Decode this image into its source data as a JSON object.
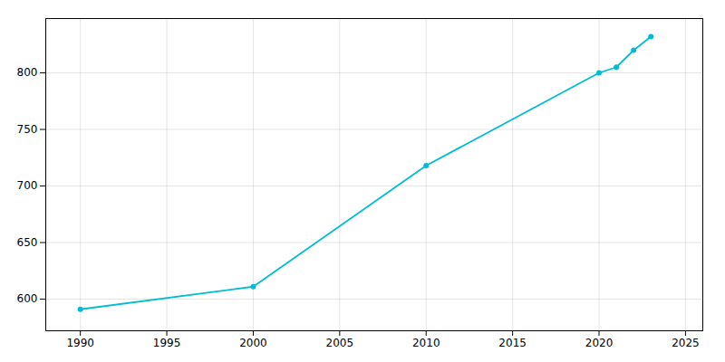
{
  "chart_data": {
    "type": "line",
    "x": [
      1990,
      2000,
      2010,
      2020,
      2021,
      2022,
      2023
    ],
    "values": [
      591,
      611,
      718,
      800,
      805,
      820,
      832
    ],
    "color": "#00bcd4",
    "marker": "circle",
    "xlim": [
      1988,
      2026
    ],
    "xticks": [
      1990,
      1995,
      2000,
      2005,
      2010,
      2015,
      2020,
      2025
    ],
    "ylim": [
      572,
      848
    ],
    "yticks": [
      600,
      650,
      700,
      750,
      800
    ],
    "grid": true
  }
}
